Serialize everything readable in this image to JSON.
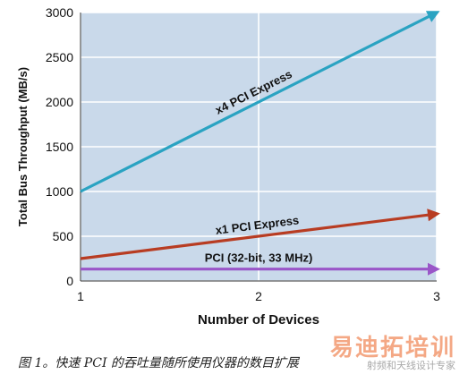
{
  "chart_data": {
    "type": "line",
    "title": "",
    "xlabel": "Number of Devices",
    "ylabel": "Total Bus Throughput (MB/s)",
    "x": [
      1,
      2,
      3
    ],
    "x_ticks": [
      "1",
      "2",
      "3"
    ],
    "y_ticks": [
      "0",
      "500",
      "1000",
      "1500",
      "2000",
      "2500",
      "3000"
    ],
    "y_tick_values": [
      0,
      500,
      1000,
      1500,
      2000,
      2500,
      3000
    ],
    "xlim": [
      1,
      3
    ],
    "ylim": [
      0,
      3000
    ],
    "grid": true,
    "plot_background": "#c9d9ea",
    "series": [
      {
        "name": "x4 PCI Express",
        "values": [
          1000,
          2000,
          3000
        ],
        "color": "#2aa3c2"
      },
      {
        "name": "x1 PCI Express",
        "values": [
          250,
          500,
          750
        ],
        "color": "#b83c22"
      },
      {
        "name": "PCI (32-bit, 33 MHz)",
        "values": [
          133,
          133,
          133
        ],
        "color": "#9a56c8"
      }
    ]
  },
  "caption": "图 1。快速 PCI 的吞吐量随所使用仪器的数目扩展",
  "watermark": {
    "main": "易迪拓培训",
    "sub": "射频和天线设计专家"
  }
}
